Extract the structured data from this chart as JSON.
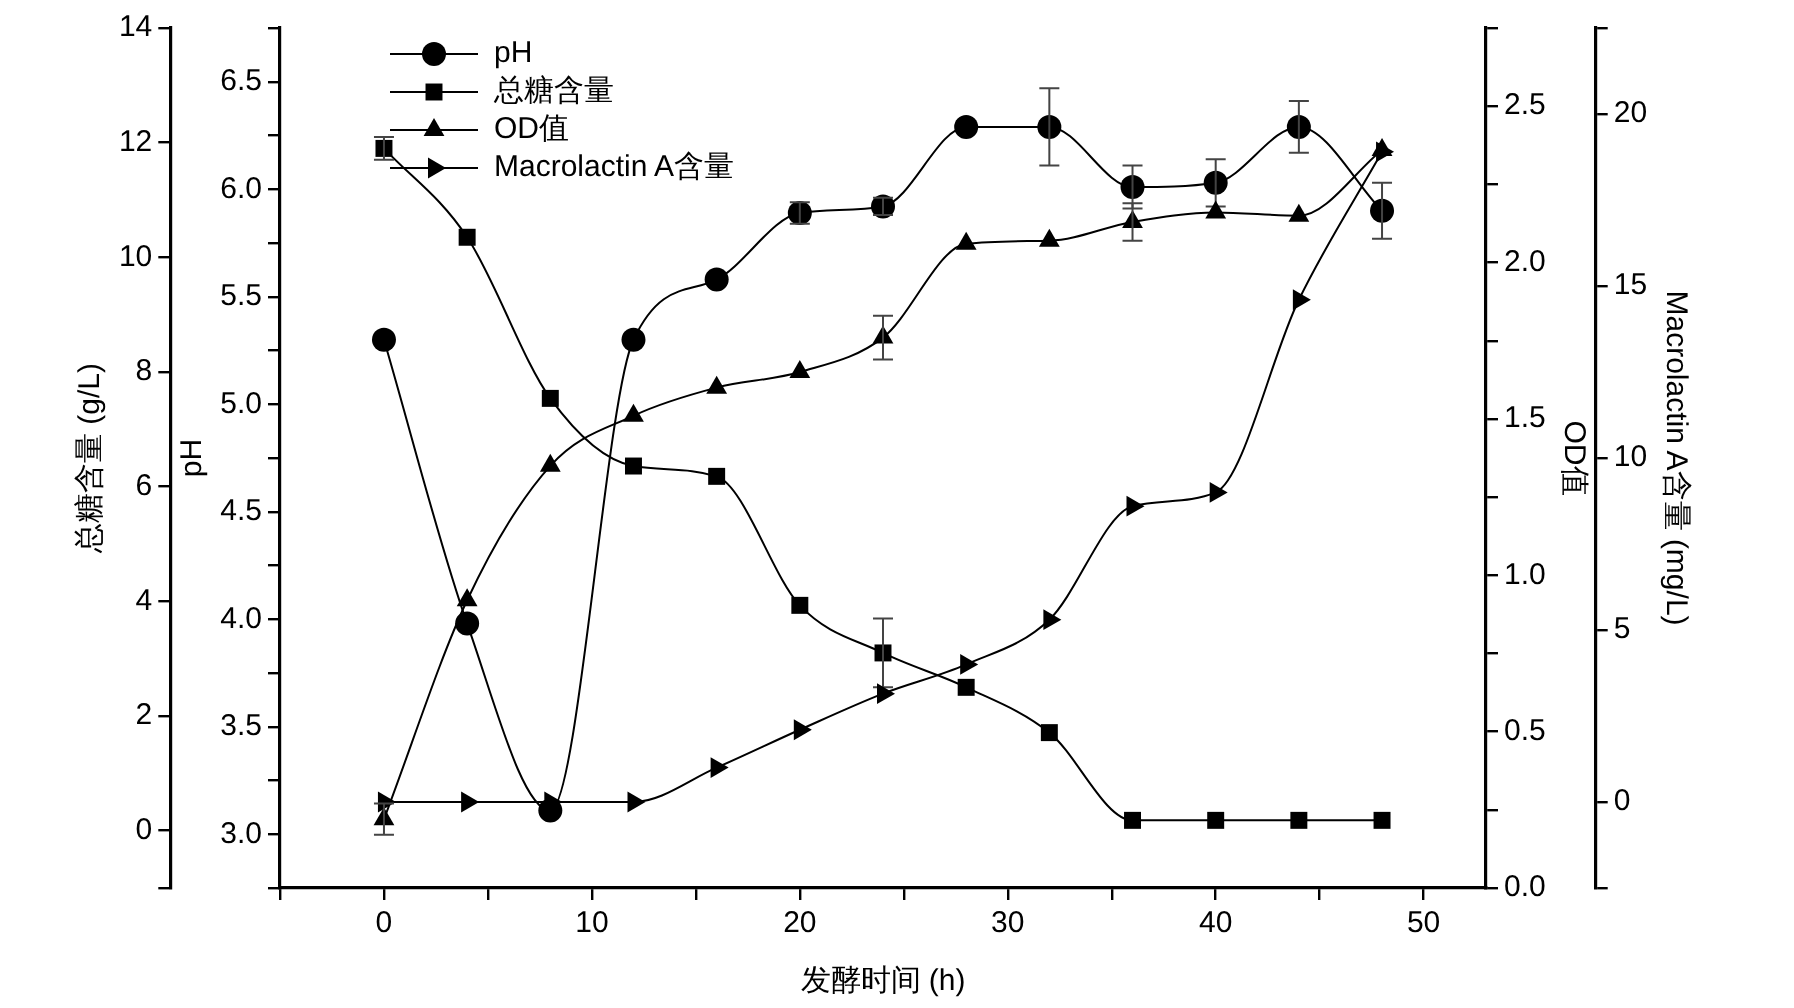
{
  "chart_data": [
    {
      "type": "line",
      "xlabel": "发酵时间 (h)",
      "ylabel": "总糖含量 (g/L)",
      "y2label": "pH",
      "x": [
        0,
        4,
        8,
        12,
        16,
        20,
        24,
        28,
        32,
        36,
        40,
        44,
        48
      ],
      "xlim": [
        -5,
        53
      ],
      "xticks": [
        {
          "value": -5,
          "label": null
        },
        0,
        {
          "value": 5,
          "label": null
        },
        10,
        {
          "value": 15,
          "label": null
        },
        20,
        {
          "value": 25,
          "label": null
        },
        30,
        {
          "value": 35,
          "label": null
        },
        40,
        {
          "value": 45,
          "label": null
        },
        50
      ],
      "ylim": [
        -1,
        14
      ],
      "yticks": [
        {
          "value": -1,
          "label": null
        },
        0,
        2,
        4,
        6,
        8,
        10,
        12,
        14
      ],
      "y2lim": [
        2.75,
        6.75
      ],
      "y2ticks": [
        {
          "value": 2.75,
          "label": null
        },
        {
          "value": 3,
          "label": "3.0"
        },
        {
          "value": 3.25,
          "label": null
        },
        3.5,
        {
          "value": 3.75,
          "label": null
        },
        {
          "value": 4,
          "label": "4.0"
        },
        {
          "value": 4.25,
          "label": null
        },
        4.5,
        {
          "value": 4.75,
          "label": null
        },
        {
          "value": 5,
          "label": "5.0"
        },
        {
          "value": 5.25,
          "label": null
        },
        5.5,
        {
          "value": 5.75,
          "label": null
        },
        {
          "value": 6,
          "label": "6.0"
        },
        {
          "value": 6.25,
          "label": null
        },
        6.5,
        {
          "value": 6.75,
          "label": null
        }
      ],
      "legend": "top left",
      "line_style": "solid",
      "grid": false,
      "series": [
        {
          "name": "pH",
          "color": "#000000",
          "axis": "y2",
          "marker": "circle",
          "values": [
            5.3,
            3.98,
            3.11,
            5.3,
            5.58,
            5.89,
            5.92,
            6.29,
            6.29,
            6.01,
            6.03,
            6.29,
            5.9
          ],
          "errors": [
            null,
            null,
            null,
            null,
            null,
            0.05,
            0.04,
            null,
            0.18,
            0.1,
            0.11,
            0.12,
            0.13
          ]
        },
        {
          "name": "总糖含量",
          "color": "#000000",
          "marker": "square",
          "values": [
            11.9,
            10.35,
            7.54,
            6.36,
            6.18,
            3.93,
            3.1,
            2.5,
            1.71,
            0.18,
            0.18,
            0.18,
            0.18
          ],
          "errors": [
            0.2,
            null,
            null,
            null,
            null,
            null,
            0.6,
            null,
            null,
            null,
            null,
            null,
            null
          ]
        }
      ]
    },
    {
      "type": "line",
      "ylabel": "OD值",
      "y2label": "Macrolactin A含量 (mg/L)",
      "tick_labels": "y",
      "x": [
        0,
        4,
        8,
        12,
        16,
        20,
        24,
        28,
        32,
        36,
        40,
        44,
        48
      ],
      "xlim": [
        -5,
        53
      ],
      "ylim": [
        0,
        2.75
      ],
      "yticks": [
        {
          "value": 0,
          "label": "0.0"
        },
        {
          "value": 0.25,
          "label": null
        },
        0.5,
        {
          "value": 0.75,
          "label": null
        },
        {
          "value": 1,
          "label": "1.0"
        },
        {
          "value": 1.25,
          "label": null
        },
        1.5,
        {
          "value": 1.75,
          "label": null
        },
        {
          "value": 2,
          "label": "2.0"
        },
        {
          "value": 2.25,
          "label": null
        },
        2.5,
        {
          "value": 2.75,
          "label": null
        }
      ],
      "y2lim": [
        -2.5,
        22.5
      ],
      "y2ticks": [
        {
          "value": -2.5,
          "label": null
        },
        0,
        5,
        10,
        15,
        20,
        {
          "value": 22.5,
          "label": null
        }
      ],
      "legend": "top left",
      "line_style": "solid",
      "grid": false,
      "series": [
        {
          "name": "OD值",
          "color": "#000000",
          "marker": "triangle",
          "values": [
            0.22,
            0.92,
            1.35,
            1.51,
            1.6,
            1.65,
            1.76,
            2.06,
            2.07,
            2.13,
            2.16,
            2.15,
            2.36
          ],
          "errors": [
            0.05,
            null,
            null,
            null,
            null,
            null,
            0.07,
            null,
            null,
            0.06,
            null,
            null,
            null
          ]
        },
        {
          "name": "Macrolactin A含量",
          "color": "#000000",
          "axis": "y2",
          "marker": "triangle-right",
          "values": [
            0,
            0,
            0,
            0,
            1,
            2.1,
            3.15,
            4,
            5.3,
            8.6,
            9,
            14.6,
            18.9
          ]
        }
      ]
    }
  ]
}
